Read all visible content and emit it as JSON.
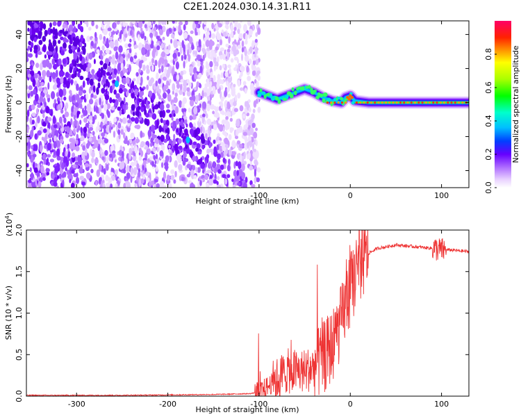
{
  "chart_data": [
    {
      "type": "heatmap",
      "title": "C2E1.2024.030.14.31.R11",
      "xlabel": "Height of straight line (km)",
      "ylabel": "Frequency (Hz)",
      "xlim": [
        -355,
        130
      ],
      "ylim": [
        -50,
        48
      ],
      "xticks": [
        "-300",
        "-200",
        "-100",
        "0",
        "100"
      ],
      "xtick_values": [
        -300,
        -200,
        -100,
        0,
        100
      ],
      "yticks": [
        "40",
        "20",
        "0",
        "-20",
        "-40"
      ],
      "ytick_values": [
        40,
        20,
        0,
        -20,
        -40
      ],
      "colorbar": {
        "label": "Normalized spectral amplitude",
        "range": [
          0,
          1
        ],
        "ticks": [
          "0.0",
          "0.2",
          "0.4",
          "0.6",
          "0.8"
        ],
        "tick_values": [
          0.0,
          0.2,
          0.4,
          0.6,
          0.8
        ]
      },
      "features": {
        "scatter_noise_region_x": [
          -355,
          -100
        ],
        "signal_band_region_x": [
          -100,
          130
        ],
        "signal_centerline": [
          {
            "x": -100,
            "y": 6
          },
          {
            "x": -90,
            "y": 4
          },
          {
            "x": -80,
            "y": 2
          },
          {
            "x": -70,
            "y": 4
          },
          {
            "x": -60,
            "y": 6
          },
          {
            "x": -50,
            "y": 8
          },
          {
            "x": -40,
            "y": 6
          },
          {
            "x": -30,
            "y": 3
          },
          {
            "x": -20,
            "y": 1
          },
          {
            "x": -10,
            "y": 0
          },
          {
            "x": -5,
            "y": 3
          },
          {
            "x": 0,
            "y": 4
          },
          {
            "x": 5,
            "y": 1
          },
          {
            "x": 20,
            "y": 0
          },
          {
            "x": 60,
            "y": 0
          },
          {
            "x": 100,
            "y": 0
          },
          {
            "x": 130,
            "y": 0
          }
        ]
      }
    },
    {
      "type": "line",
      "xlabel": "Height of straight line (km)",
      "ylabel": "SNR (10 * v/v)",
      "ylabel_multiplier": "(x10",
      "ylabel_multiplier_exp": "4",
      "ylabel_multiplier_close": ")",
      "xlim": [
        -355,
        130
      ],
      "ylim": [
        0,
        2.0
      ],
      "xticks": [
        "-300",
        "-200",
        "-100",
        "0",
        "100"
      ],
      "xtick_values": [
        -300,
        -200,
        -100,
        0,
        100
      ],
      "yticks": [
        "0.0",
        "0.5",
        "1.0",
        "1.5",
        "2.0"
      ],
      "ytick_values": [
        0.0,
        0.5,
        1.0,
        1.5,
        2.0
      ],
      "series": [
        {
          "color": "#ee3333",
          "x": [
            -355,
            -300,
            -250,
            -200,
            -150,
            -110,
            -100,
            -90,
            -80,
            -70,
            -60,
            -50,
            -40,
            -30,
            -20,
            -10,
            0,
            10,
            20,
            30,
            40,
            50,
            60,
            70,
            80,
            90,
            100,
            110,
            120,
            130
          ],
          "y": [
            0.01,
            0.01,
            0.01,
            0.015,
            0.02,
            0.03,
            0.05,
            0.12,
            0.2,
            0.3,
            0.3,
            0.3,
            0.35,
            0.45,
            0.6,
            0.9,
            1.3,
            1.55,
            1.72,
            1.78,
            1.8,
            1.82,
            1.81,
            1.8,
            1.79,
            1.78,
            1.76,
            1.76,
            1.75,
            1.74
          ]
        }
      ]
    }
  ]
}
